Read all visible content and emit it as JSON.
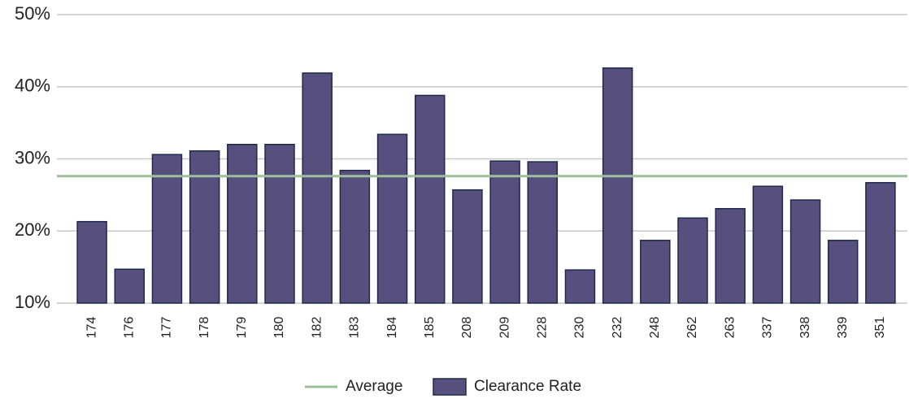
{
  "chart_data": {
    "type": "bar",
    "categories": [
      "174",
      "176",
      "177",
      "178",
      "179",
      "180",
      "182",
      "183",
      "184",
      "185",
      "208",
      "209",
      "228",
      "230",
      "232",
      "248",
      "262",
      "263",
      "337",
      "338",
      "339",
      "351"
    ],
    "series": [
      {
        "name": "Clearance Rate",
        "color": "#574f7d",
        "values": [
          21.3,
          14.7,
          30.6,
          31.1,
          32.0,
          32.0,
          41.9,
          28.4,
          33.4,
          38.8,
          25.7,
          29.7,
          29.6,
          14.6,
          42.6,
          18.7,
          21.8,
          23.1,
          26.2,
          24.3,
          18.7,
          26.7
        ]
      }
    ],
    "average": {
      "name": "Average",
      "value": 27.6,
      "color": "#9dbf9b"
    },
    "ylim": [
      10,
      50
    ],
    "yticks": [
      {
        "value": 10,
        "label": "10%"
      },
      {
        "value": 20,
        "label": "20%"
      },
      {
        "value": 30,
        "label": "30%"
      },
      {
        "value": 40,
        "label": "40%"
      },
      {
        "value": 50,
        "label": "50%"
      }
    ],
    "grid": true
  }
}
